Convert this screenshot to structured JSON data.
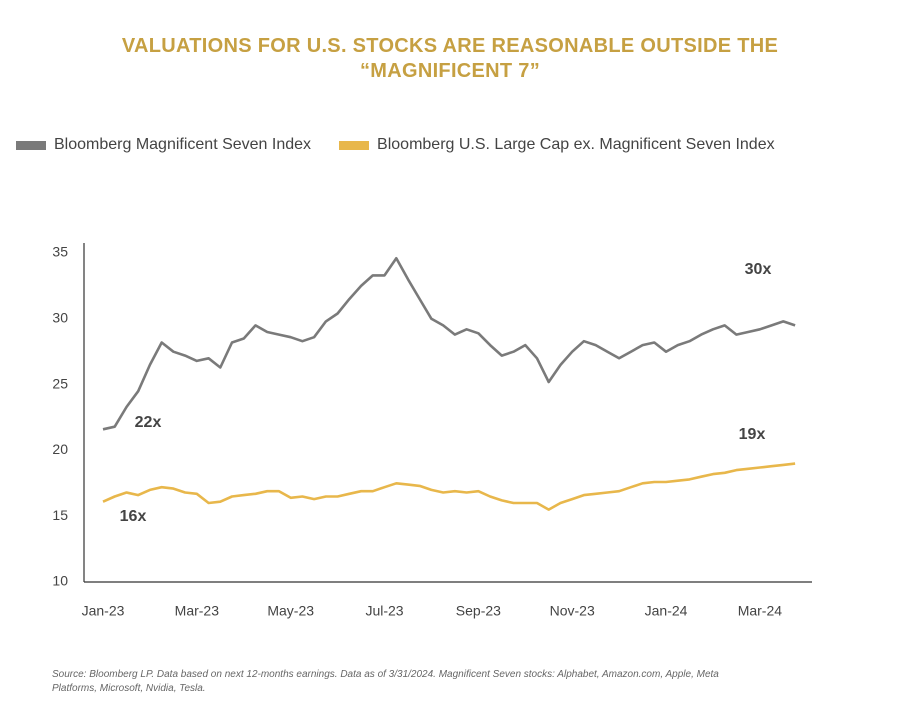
{
  "chart_data": {
    "type": "line",
    "title": "VALUATIONS FOR U.S. STOCKS ARE REASONABLE OUTSIDE THE “MAGNIFICENT 7”",
    "categories": [
      "Jan-23",
      null,
      null,
      null,
      null,
      null,
      null,
      null,
      "Mar-23",
      null,
      null,
      null,
      null,
      null,
      null,
      null,
      "May-23",
      null,
      null,
      null,
      null,
      null,
      null,
      null,
      "Jul-23",
      null,
      null,
      null,
      null,
      null,
      null,
      null,
      "Sep-23",
      null,
      null,
      null,
      null,
      null,
      null,
      null,
      "Nov-23",
      null,
      null,
      null,
      null,
      null,
      null,
      null,
      "Jan-24",
      null,
      null,
      null,
      null,
      null,
      null,
      null,
      "Mar-24",
      null,
      null,
      null
    ],
    "series": [
      {
        "name": "Bloomberg Magnificent Seven Index",
        "color": "#7a7a7a",
        "values": [
          21.6,
          21.8,
          23.3,
          24.5,
          26.5,
          28.2,
          27.5,
          27.2,
          26.8,
          27.0,
          26.3,
          28.2,
          28.5,
          29.5,
          29.0,
          28.8,
          28.6,
          28.3,
          28.6,
          29.8,
          30.4,
          31.5,
          32.5,
          33.3,
          33.3,
          34.6,
          33.0,
          31.5,
          30.0,
          29.5,
          28.8,
          29.2,
          28.9,
          28.0,
          27.2,
          27.5,
          28.0,
          27.0,
          25.2,
          26.5,
          27.5,
          28.3,
          28.0,
          27.5,
          27.0,
          27.5,
          28.0,
          28.2,
          27.5,
          28.0,
          28.3,
          28.8,
          29.2,
          29.5,
          28.8,
          29.0,
          29.2,
          29.5,
          29.8,
          29.5
        ]
      },
      {
        "name": "Bloomberg U.S. Large Cap ex. Magnificent Seven Index",
        "color": "#e8b74b",
        "values": [
          16.1,
          16.5,
          16.8,
          16.6,
          17.0,
          17.2,
          17.1,
          16.8,
          16.7,
          16.0,
          16.1,
          16.5,
          16.6,
          16.7,
          16.9,
          16.9,
          16.4,
          16.5,
          16.3,
          16.5,
          16.5,
          16.7,
          16.9,
          16.9,
          17.2,
          17.5,
          17.4,
          17.3,
          17.0,
          16.8,
          16.9,
          16.8,
          16.9,
          16.5,
          16.2,
          16.0,
          16.0,
          16.0,
          15.5,
          16.0,
          16.3,
          16.6,
          16.7,
          16.8,
          16.9,
          17.2,
          17.5,
          17.6,
          17.6,
          17.7,
          17.8,
          18.0,
          18.2,
          18.3,
          18.5,
          18.6,
          18.7,
          18.8,
          18.9,
          19.0
        ]
      }
    ],
    "ylim": [
      10,
      35
    ],
    "yticks": [
      10,
      15,
      20,
      25,
      30,
      35
    ],
    "grid": false,
    "annotations": [
      "22x",
      "16x",
      "30x",
      "19x"
    ],
    "source": "Source: Bloomberg LP. Data based on next 12-months earnings. Data as of 3/31/2024. Magnificent Seven stocks: Alphabet, Amazon.com, Apple, Meta Platforms, Microsoft, Nvidia, Tesla."
  }
}
